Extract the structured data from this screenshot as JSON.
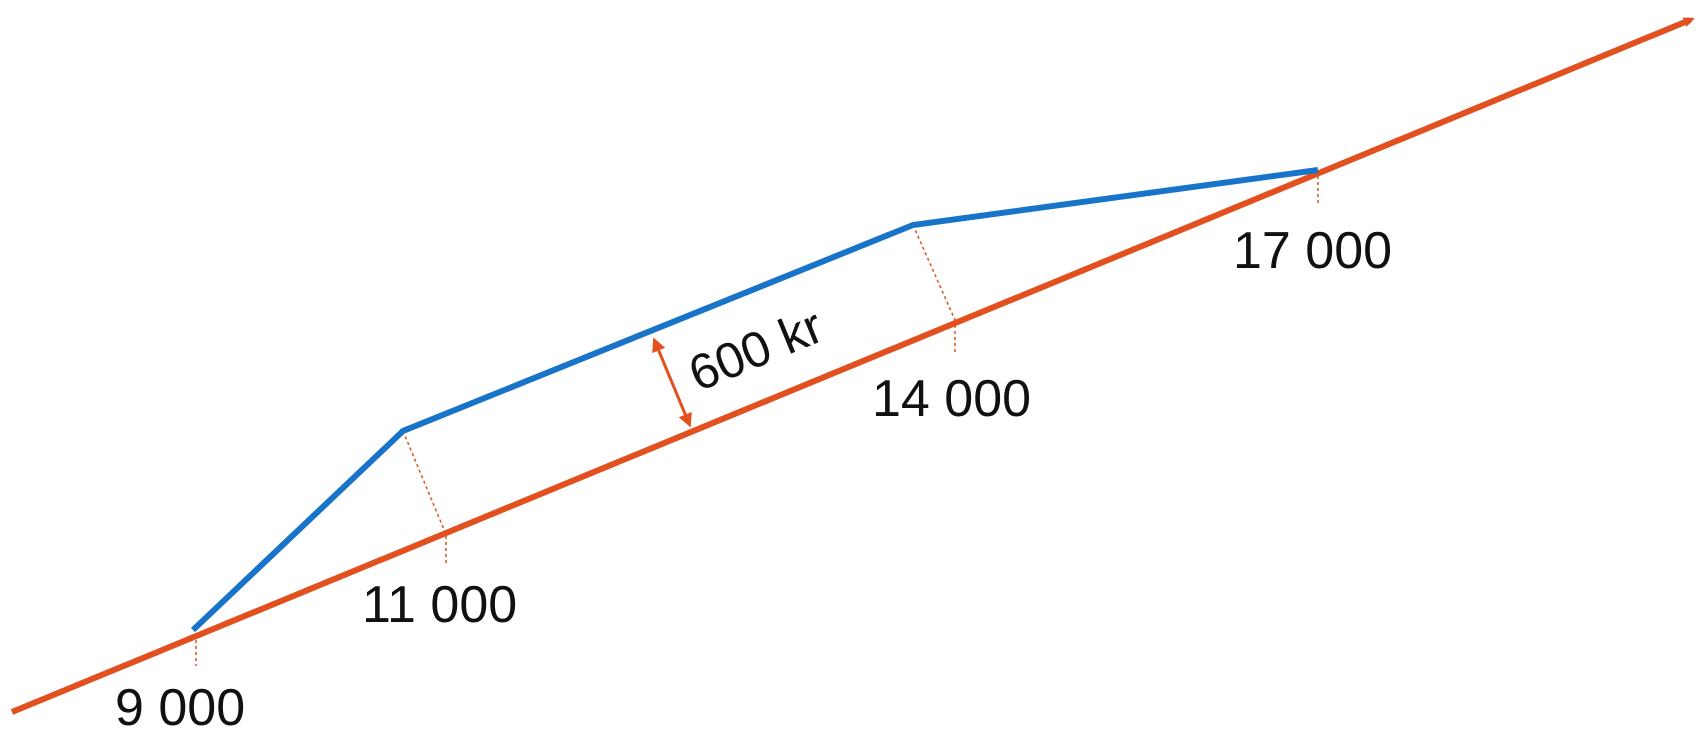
{
  "colors": {
    "baseline": "#E1501E",
    "shifted": "#1874C8",
    "text": "#111111",
    "background": "#FFFFFF"
  },
  "ticks": [
    {
      "value": 9000,
      "label": "9 000"
    },
    {
      "value": 11000,
      "label": "11 000"
    },
    {
      "value": 14000,
      "label": "14 000"
    },
    {
      "value": 17000,
      "label": "17 000"
    }
  ],
  "gap": {
    "label": "600 kr"
  }
}
